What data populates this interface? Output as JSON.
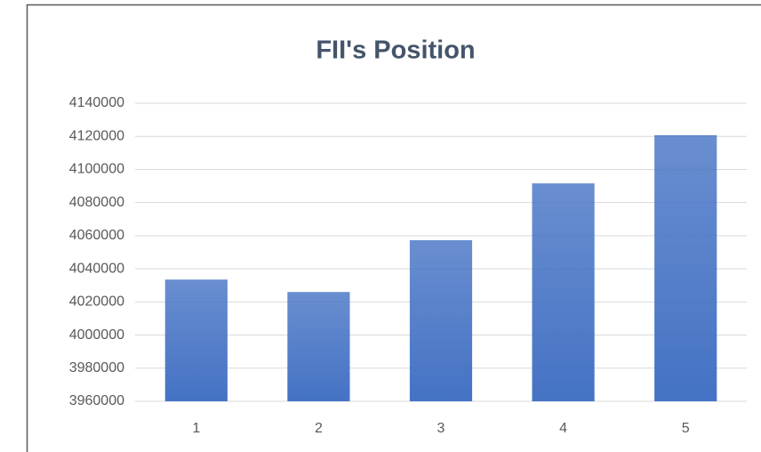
{
  "chart_data": {
    "type": "bar",
    "title": "FII's Position",
    "categories": [
      "1",
      "2",
      "3",
      "4",
      "5"
    ],
    "values": [
      4033500,
      4026000,
      4057300,
      4091600,
      4120700
    ],
    "color": "#4472c4",
    "ylim": [
      3960000,
      4140000
    ],
    "yticks": [
      3960000,
      3980000,
      4000000,
      4020000,
      4040000,
      4060000,
      4080000,
      4100000,
      4120000,
      4140000
    ],
    "grid": true
  }
}
